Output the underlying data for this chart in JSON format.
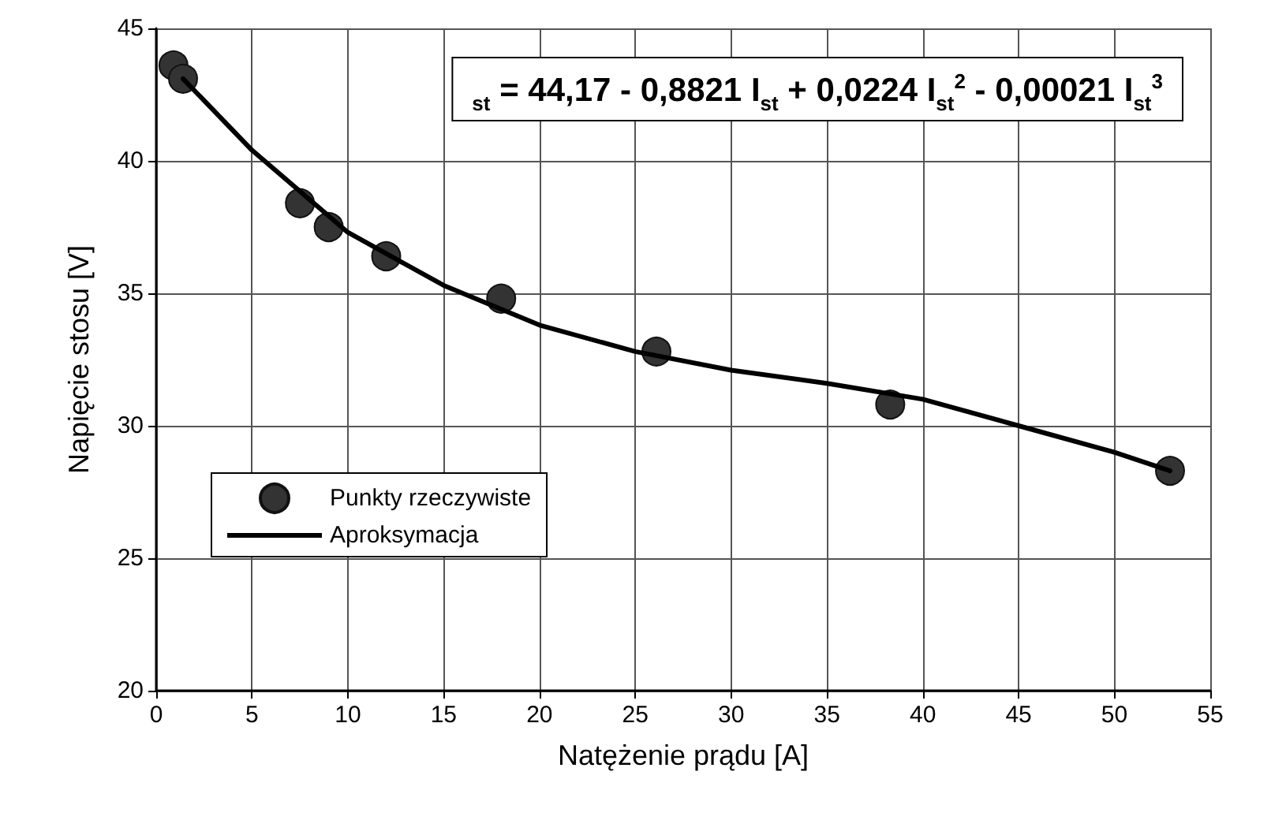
{
  "chart_data": {
    "type": "scatter",
    "xlabel": "Natężenie prądu [A]",
    "ylabel": "Napięcie stosu [V]",
    "annotations": [
      "$_{st}$ = 44,17 - 0,8821 I$_{st}$ + 0,0224 I$_{st}$$^{2}$ - 0,00021 I$_{st}$$^{3}$"
    ],
    "series": [
      {
        "name": "Punkty rzeczywiste",
        "color": "#333333",
        "marker": "circle",
        "x": [
          0.9,
          1.4,
          7.5,
          9.0,
          12.0,
          18.0,
          26.1,
          38.3,
          52.9
        ],
        "values": [
          43.6,
          43.1,
          38.4,
          37.5,
          36.4,
          34.8,
          32.8,
          30.8,
          28.3
        ]
      },
      {
        "name": "Aproksymacja",
        "type": "line",
        "color": "#000000",
        "marker": "none",
        "line_style": "solid",
        "x": [
          1.4,
          5,
          10,
          15,
          20,
          25,
          30,
          35,
          40,
          45,
          50,
          52.9
        ],
        "values": [
          43.1,
          40.4,
          37.3,
          35.3,
          33.8,
          32.8,
          32.1,
          31.6,
          31.0,
          30.0,
          29.0,
          28.3
        ]
      }
    ],
    "xlim": [
      0,
      55
    ],
    "xticks": [
      0,
      5,
      10,
      15,
      20,
      25,
      30,
      35,
      40,
      45,
      50,
      55
    ],
    "ylim": [
      20,
      45
    ],
    "yticks": [
      20,
      25,
      30,
      35,
      40,
      45
    ],
    "grid": true,
    "legend": "bottom left"
  }
}
